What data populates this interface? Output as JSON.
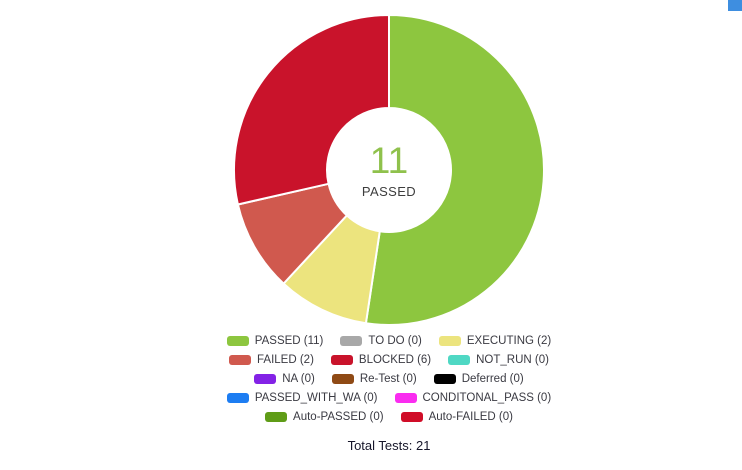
{
  "scrollbar": {
    "color": "#3e8ee0"
  },
  "chart_data": {
    "type": "pie",
    "subtype": "donut",
    "center_value": "11",
    "center_label": "PASSED",
    "total": 21,
    "donut_hole_ratio": 0.4,
    "legend_position": "bottom",
    "series": [
      {
        "label": "PASSED",
        "value": 11,
        "color": "#8dc63f"
      },
      {
        "label": "TO DO",
        "value": 0,
        "color": "#a8a8a8"
      },
      {
        "label": "EXECUTING",
        "value": 2,
        "color": "#ece47e"
      },
      {
        "label": "FAILED",
        "value": 2,
        "color": "#d0594e"
      },
      {
        "label": "BLOCKED",
        "value": 6,
        "color": "#c9132b"
      },
      {
        "label": "NOT_RUN",
        "value": 0,
        "color": "#4fd8c4"
      },
      {
        "label": "NA",
        "value": 0,
        "color": "#8322e6"
      },
      {
        "label": "Re-Test",
        "value": 0,
        "color": "#8f4a15"
      },
      {
        "label": "Deferred",
        "value": 0,
        "color": "#000000"
      },
      {
        "label": "PASSED_WITH_WA",
        "value": 0,
        "color": "#1d7df2"
      },
      {
        "label": "CONDITONAL_PASS",
        "value": 0,
        "color": "#fa2cf0"
      },
      {
        "label": "Auto-PASSED",
        "value": 0,
        "color": "#5f9c17"
      },
      {
        "label": "Auto-FAILED",
        "value": 0,
        "color": "#d00d28"
      }
    ],
    "legend_rows": [
      [
        0,
        1,
        2
      ],
      [
        3,
        4,
        5
      ],
      [
        6,
        7,
        8
      ],
      [
        9,
        10
      ],
      [
        11,
        12
      ]
    ]
  },
  "footer": {
    "total_text": "Total Tests: 21"
  }
}
